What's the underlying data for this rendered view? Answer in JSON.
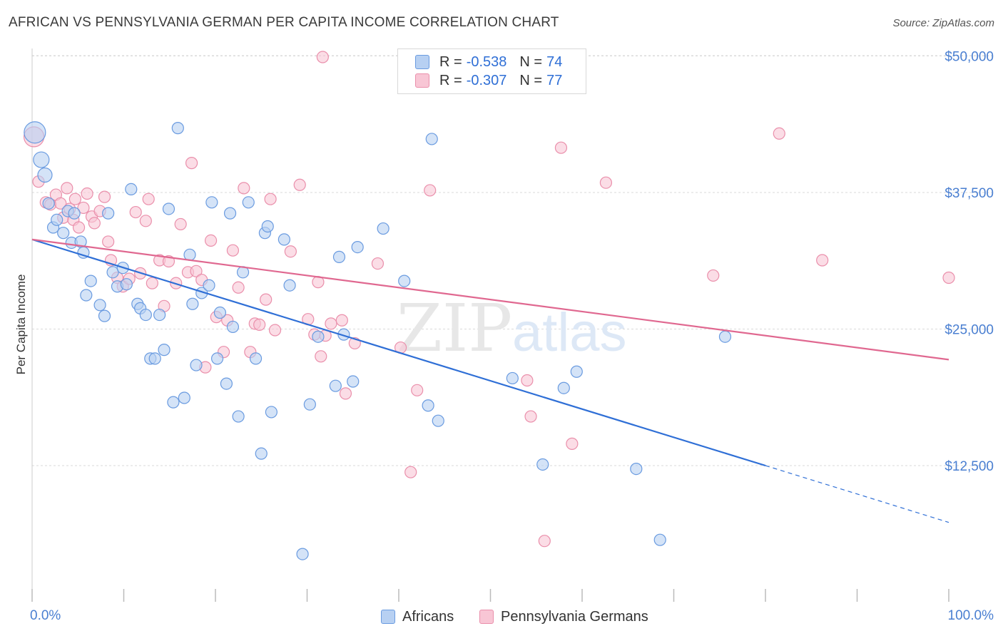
{
  "header": {
    "title": "AFRICAN VS PENNSYLVANIA GERMAN PER CAPITA INCOME CORRELATION CHART",
    "source": "Source: ZipAtlas.com"
  },
  "watermark": {
    "zip": "ZIP",
    "atlas": "atlas"
  },
  "legend": {
    "africans": {
      "r_label": "R =",
      "r_value": "-0.538",
      "n_label": "N =",
      "n_value": "74"
    },
    "pa_germans": {
      "r_label": "R =",
      "r_value": "-0.307",
      "n_label": "N =",
      "n_value": "77"
    }
  },
  "bottom_legend": {
    "africans": "Africans",
    "pa_germans": "Pennsylvania Germans"
  },
  "colors": {
    "blue_fill": "#b7d0f2",
    "blue_stroke": "#6a9be0",
    "blue_line": "#2f6fd6",
    "pink_fill": "#f8c6d5",
    "pink_stroke": "#ea8fab",
    "pink_line": "#e06890",
    "tick_text": "#4a7fd1",
    "grid": "#d9d9d9"
  },
  "chart_data": {
    "type": "scatter",
    "title": "AFRICAN VS PENNSYLVANIA GERMAN PER CAPITA INCOME CORRELATION CHART",
    "xlabel": "",
    "ylabel": "Per Capita Income",
    "xlim": [
      0,
      100
    ],
    "ylim": [
      1000,
      51000
    ],
    "x_tick_labels": [
      "0.0%",
      "100.0%"
    ],
    "y_ticks": [
      12500,
      25000,
      37500,
      50000
    ],
    "y_tick_labels": [
      "$12,500",
      "$25,000",
      "$37,500",
      "$50,000"
    ],
    "series": [
      {
        "name": "Africans",
        "r": -0.538,
        "n": 74,
        "trend": {
          "x": [
            0,
            80
          ],
          "y": [
            33200,
            12500
          ],
          "dashed_to": [
            100,
            7300
          ]
        },
        "points": [
          [
            0.3,
            43000,
            30
          ],
          [
            1.0,
            40500,
            22
          ],
          [
            1.4,
            39100,
            20
          ],
          [
            1.8,
            36500,
            16
          ],
          [
            2.3,
            34300,
            16
          ],
          [
            2.7,
            35000,
            16
          ],
          [
            3.4,
            33800,
            16
          ],
          [
            3.9,
            35800,
            16
          ],
          [
            4.3,
            32900,
            16
          ],
          [
            4.6,
            35600,
            16
          ],
          [
            5.3,
            33000,
            16
          ],
          [
            5.6,
            32000,
            16
          ],
          [
            5.9,
            28100,
            16
          ],
          [
            6.4,
            29400,
            16
          ],
          [
            7.4,
            27200,
            16
          ],
          [
            7.9,
            26200,
            16
          ],
          [
            8.3,
            35600,
            16
          ],
          [
            8.8,
            30200,
            16
          ],
          [
            9.3,
            28900,
            16
          ],
          [
            9.9,
            30600,
            16
          ],
          [
            10.3,
            29100,
            16
          ],
          [
            10.8,
            37800,
            16
          ],
          [
            11.5,
            27300,
            16
          ],
          [
            11.8,
            26900,
            16
          ],
          [
            12.4,
            26300,
            16
          ],
          [
            12.9,
            22300,
            16
          ],
          [
            13.4,
            22300,
            16
          ],
          [
            13.9,
            26300,
            16
          ],
          [
            14.4,
            23100,
            16
          ],
          [
            14.9,
            36000,
            16
          ],
          [
            15.4,
            18300,
            16
          ],
          [
            15.9,
            43400,
            16
          ],
          [
            16.6,
            18700,
            16
          ],
          [
            17.2,
            31800,
            16
          ],
          [
            17.5,
            27300,
            16
          ],
          [
            17.9,
            21700,
            16
          ],
          [
            18.5,
            28300,
            16
          ],
          [
            19.3,
            29000,
            16
          ],
          [
            19.6,
            36600,
            16
          ],
          [
            20.2,
            22300,
            16
          ],
          [
            20.5,
            26500,
            16
          ],
          [
            21.2,
            20000,
            16
          ],
          [
            21.6,
            35600,
            16
          ],
          [
            21.9,
            25200,
            16
          ],
          [
            22.5,
            17000,
            16
          ],
          [
            23.0,
            30200,
            16
          ],
          [
            23.6,
            36600,
            16
          ],
          [
            24.4,
            22300,
            16
          ],
          [
            25.0,
            13600,
            16
          ],
          [
            25.4,
            33800,
            16
          ],
          [
            25.7,
            34400,
            16
          ],
          [
            26.1,
            17400,
            16
          ],
          [
            27.5,
            33200,
            16
          ],
          [
            28.1,
            29000,
            16
          ],
          [
            29.5,
            4400,
            16
          ],
          [
            30.3,
            18100,
            16
          ],
          [
            31.2,
            24300,
            16
          ],
          [
            33.1,
            19800,
            16
          ],
          [
            33.5,
            31600,
            16
          ],
          [
            34.0,
            24500,
            16
          ],
          [
            35.0,
            20200,
            16
          ],
          [
            35.5,
            32500,
            16
          ],
          [
            38.3,
            34200,
            16
          ],
          [
            40.6,
            29400,
            16
          ],
          [
            43.2,
            18000,
            16
          ],
          [
            44.3,
            16600,
            16
          ],
          [
            43.6,
            42400,
            16
          ],
          [
            52.4,
            20500,
            16
          ],
          [
            55.7,
            12600,
            16
          ],
          [
            58.0,
            19600,
            16
          ],
          [
            59.4,
            21100,
            16
          ],
          [
            65.9,
            12200,
            16
          ],
          [
            68.5,
            5700,
            16
          ],
          [
            75.6,
            24300,
            16
          ]
        ]
      },
      {
        "name": "Pennsylvania Germans",
        "r": -0.307,
        "n": 77,
        "trend": {
          "x": [
            0,
            100
          ],
          "y": [
            33200,
            22200
          ]
        },
        "points": [
          [
            0.2,
            42600,
            28
          ],
          [
            0.7,
            38500,
            16
          ],
          [
            1.5,
            36600,
            16
          ],
          [
            2.0,
            36400,
            16
          ],
          [
            2.6,
            37300,
            16
          ],
          [
            3.1,
            36500,
            16
          ],
          [
            3.4,
            35200,
            16
          ],
          [
            3.8,
            37900,
            16
          ],
          [
            4.1,
            36000,
            16
          ],
          [
            4.5,
            35000,
            16
          ],
          [
            4.7,
            36900,
            16
          ],
          [
            5.1,
            34300,
            16
          ],
          [
            5.6,
            36100,
            16
          ],
          [
            6.0,
            37400,
            16
          ],
          [
            6.5,
            35300,
            16
          ],
          [
            6.8,
            34700,
            16
          ],
          [
            7.4,
            35800,
            16
          ],
          [
            7.9,
            37100,
            16
          ],
          [
            8.3,
            33000,
            16
          ],
          [
            8.6,
            31300,
            16
          ],
          [
            9.3,
            29700,
            16
          ],
          [
            9.9,
            28900,
            16
          ],
          [
            10.6,
            29600,
            16
          ],
          [
            11.3,
            35700,
            16
          ],
          [
            11.8,
            30100,
            16
          ],
          [
            12.4,
            34900,
            16
          ],
          [
            12.7,
            36900,
            16
          ],
          [
            13.1,
            29200,
            16
          ],
          [
            13.9,
            31300,
            16
          ],
          [
            14.4,
            27100,
            16
          ],
          [
            14.9,
            31200,
            16
          ],
          [
            15.7,
            29200,
            16
          ],
          [
            16.2,
            34600,
            16
          ],
          [
            17.0,
            30200,
            16
          ],
          [
            17.4,
            40200,
            16
          ],
          [
            17.9,
            30300,
            16
          ],
          [
            18.5,
            29500,
            16
          ],
          [
            18.9,
            21500,
            16
          ],
          [
            19.5,
            33100,
            16
          ],
          [
            20.1,
            26100,
            16
          ],
          [
            20.9,
            22900,
            16
          ],
          [
            21.3,
            25800,
            16
          ],
          [
            21.9,
            32200,
            16
          ],
          [
            22.5,
            28800,
            16
          ],
          [
            23.1,
            37900,
            16
          ],
          [
            23.8,
            22900,
            16
          ],
          [
            24.3,
            25500,
            16
          ],
          [
            24.8,
            25400,
            16
          ],
          [
            25.5,
            27700,
            16
          ],
          [
            26.0,
            36900,
            16
          ],
          [
            26.5,
            24900,
            16
          ],
          [
            28.2,
            32100,
            16
          ],
          [
            29.2,
            38200,
            16
          ],
          [
            30.1,
            25900,
            16
          ],
          [
            30.8,
            24500,
            16
          ],
          [
            31.2,
            29300,
            16
          ],
          [
            31.5,
            22500,
            16
          ],
          [
            31.7,
            49900,
            16
          ],
          [
            32.0,
            24400,
            16
          ],
          [
            32.6,
            25500,
            16
          ],
          [
            33.8,
            25800,
            16
          ],
          [
            34.2,
            19100,
            16
          ],
          [
            35.2,
            23700,
            16
          ],
          [
            37.7,
            31000,
            16
          ],
          [
            40.2,
            23300,
            16
          ],
          [
            41.3,
            11900,
            16
          ],
          [
            42.0,
            19400,
            16
          ],
          [
            43.4,
            37700,
            16
          ],
          [
            54.0,
            20300,
            16
          ],
          [
            54.4,
            17000,
            16
          ],
          [
            55.9,
            5600,
            16
          ],
          [
            57.7,
            41600,
            16
          ],
          [
            58.9,
            14500,
            16
          ],
          [
            62.6,
            38400,
            16
          ],
          [
            74.3,
            29900,
            16
          ],
          [
            81.5,
            42900,
            16
          ],
          [
            86.2,
            31300,
            16
          ],
          [
            100.0,
            29700,
            16
          ]
        ]
      }
    ]
  }
}
